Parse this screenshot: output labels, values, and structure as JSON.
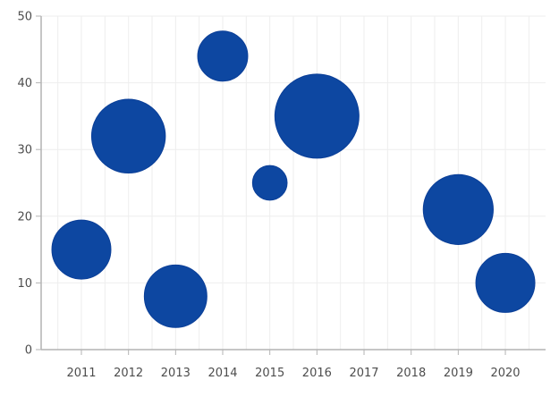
{
  "chart_data": {
    "type": "scatter",
    "subtype": "bubble",
    "title": "",
    "xlabel": "",
    "ylabel": "",
    "x_categories": [
      "2011",
      "2012",
      "2013",
      "2014",
      "2015",
      "2016",
      "2017",
      "2018",
      "2019",
      "2020"
    ],
    "y_ticks": [
      "0",
      "10",
      "20",
      "30",
      "40",
      "50"
    ],
    "ylim": [
      0,
      50
    ],
    "grid": true,
    "legend": "none",
    "colors": {
      "bubble": "#0d47a1",
      "grid": "#eeeeee",
      "axis": "#b3b3b3",
      "label": "#4d4d4d"
    },
    "series": [
      {
        "points": [
          {
            "x": "2011",
            "y": 15,
            "size": 3.2
          },
          {
            "x": "2012",
            "y": 32,
            "size": 5.0
          },
          {
            "x": "2013",
            "y": 8,
            "size": 3.6
          },
          {
            "x": "2014",
            "y": 44,
            "size": 2.3
          },
          {
            "x": "2015",
            "y": 25,
            "size": 1.1
          },
          {
            "x": "2016",
            "y": 35,
            "size": 6.5
          },
          {
            "x": "2019",
            "y": 21,
            "size": 4.5
          },
          {
            "x": "2020",
            "y": 10,
            "size": 3.2
          }
        ]
      }
    ]
  }
}
